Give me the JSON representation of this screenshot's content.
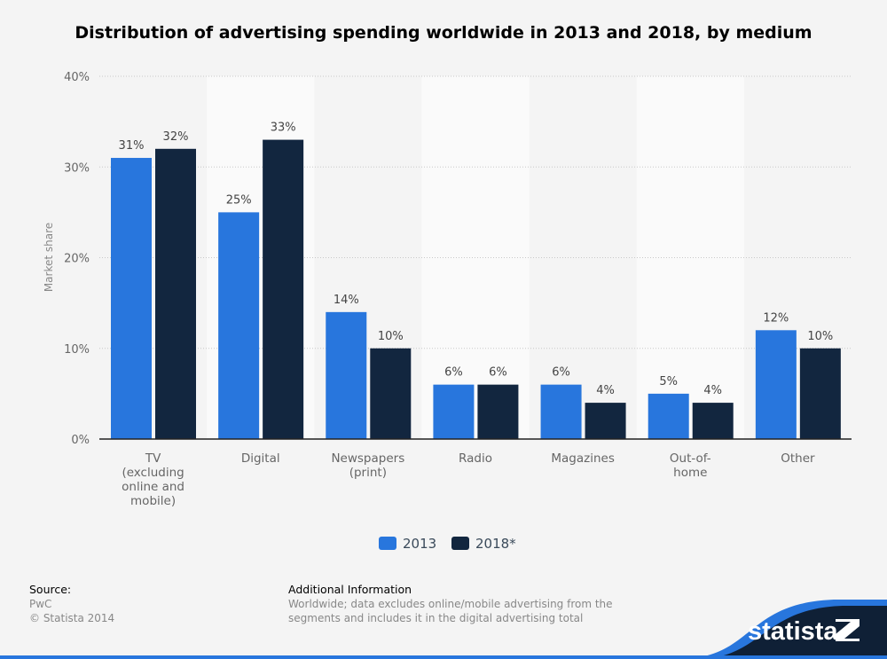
{
  "chart_data": {
    "type": "bar",
    "title": "Distribution of advertising spending worldwide in 2013 and 2018, by medium",
    "ylabel": "Market share",
    "xlabel": "",
    "ylim": [
      0,
      40
    ],
    "yticks": [
      "0%",
      "10%",
      "20%",
      "30%",
      "40%"
    ],
    "grid": true,
    "legend_position": "bottom",
    "categories": [
      [
        "TV",
        "(excluding",
        "online and",
        "mobile)"
      ],
      [
        "Digital"
      ],
      [
        "Newspapers",
        "(print)"
      ],
      [
        "Radio"
      ],
      [
        "Magazines"
      ],
      [
        "Out-of-",
        "home"
      ],
      [
        "Other"
      ]
    ],
    "series": [
      {
        "name": "2013",
        "color": "#2876dd",
        "values": [
          31,
          25,
          14,
          6,
          6,
          5,
          12
        ]
      },
      {
        "name": "2018*",
        "color": "#12263f",
        "values": [
          32,
          33,
          10,
          6,
          4,
          4,
          10
        ]
      }
    ]
  },
  "footer": {
    "source_label": "Source:",
    "source": "PwC",
    "copyright": "© Statista 2014",
    "info_label": "Additional Information",
    "info_line1": "Worldwide; data excludes online/mobile advertising from the",
    "info_line2": "segments and includes it in the digital advertising total",
    "logo": "statista"
  }
}
